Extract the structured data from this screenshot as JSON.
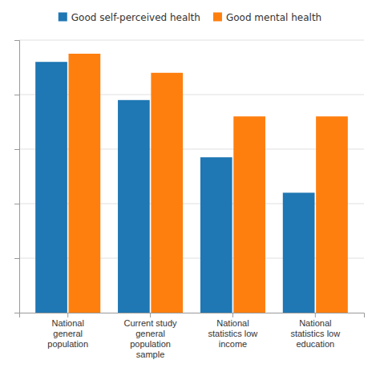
{
  "chart_data": {
    "type": "bar",
    "categories": [
      "National\ngeneral\npopulation",
      "Current study\ngeneral\npopulation\nsample",
      "National\nstatistics low\nincome",
      "National\nstatistics low\neducation"
    ],
    "series": [
      {
        "name": "Good self-perceived health",
        "values": [
          92,
          78,
          57,
          44
        ]
      },
      {
        "name": "Good mental health",
        "values": [
          95,
          88,
          72,
          72
        ]
      }
    ],
    "ylim": [
      0,
      100
    ],
    "yticks": [
      20,
      40,
      60,
      80,
      100
    ],
    "grid": true,
    "legend": "top",
    "tick_labels": "x"
  }
}
